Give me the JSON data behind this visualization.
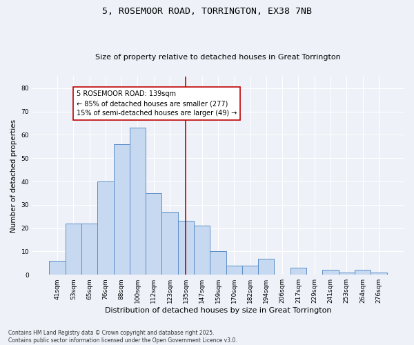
{
  "title": "5, ROSEMOOR ROAD, TORRINGTON, EX38 7NB",
  "subtitle": "Size of property relative to detached houses in Great Torrington",
  "xlabel": "Distribution of detached houses by size in Great Torrington",
  "ylabel": "Number of detached properties",
  "categories": [
    "41sqm",
    "53sqm",
    "65sqm",
    "76sqm",
    "88sqm",
    "100sqm",
    "112sqm",
    "123sqm",
    "135sqm",
    "147sqm",
    "159sqm",
    "170sqm",
    "182sqm",
    "194sqm",
    "206sqm",
    "217sqm",
    "229sqm",
    "241sqm",
    "253sqm",
    "264sqm",
    "276sqm"
  ],
  "bar_values": [
    6,
    22,
    22,
    40,
    56,
    63,
    35,
    27,
    23,
    21,
    10,
    4,
    4,
    7,
    0,
    3,
    0,
    2,
    1,
    2,
    1
  ],
  "bar_color": "#c6d9f0",
  "bar_edge_color": "#5b8dc8",
  "vline_color": "#c00000",
  "annotation_text": "5 ROSEMOOR ROAD: 139sqm\n← 85% of detached houses are smaller (277)\n15% of semi-detached houses are larger (49) →",
  "annotation_box_color": "#c00000",
  "ylim": [
    0,
    85
  ],
  "yticks": [
    0,
    10,
    20,
    30,
    40,
    50,
    60,
    70,
    80
  ],
  "footer": "Contains HM Land Registry data © Crown copyright and database right 2025.\nContains public sector information licensed under the Open Government Licence v3.0.",
  "bg_color": "#eef2f8",
  "grid_color": "#ffffff"
}
